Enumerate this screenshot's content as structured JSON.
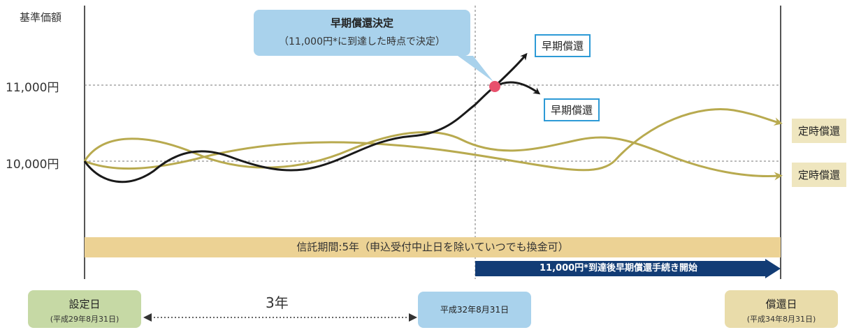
{
  "axis": {
    "title": "基準価額",
    "ticks": [
      "11,000円",
      "10,000円"
    ]
  },
  "callout": {
    "title": "早期償還決定",
    "note": "（11,000円*に到達した時点で決定）"
  },
  "outcomes": {
    "early": [
      "早期償還",
      "早期償還"
    ],
    "scheduled": [
      "定時償還",
      "定時償還"
    ]
  },
  "trust_period": "信託期間:5年（申込受付中止日を除いていつでも換金可）",
  "procedure": "11,000円*到達後早期償還手続き開始",
  "dates": {
    "start": {
      "label": "設定日",
      "date": "(平成29年8月31日)"
    },
    "mid": {
      "date": "平成32年8月31日"
    },
    "end": {
      "label": "償還日",
      "date": "(平成34年8月31日)"
    }
  },
  "span_label": "3年",
  "colors": {
    "black_path": "#1a1a1a",
    "olive_path": "#b8aa4f",
    "trigger_point": "#e8516d",
    "callout": "#a9d2ec",
    "trust_bar": "#ecd294",
    "procedure_arrow": "#123c75",
    "early_border": "#2d9ad6"
  }
}
